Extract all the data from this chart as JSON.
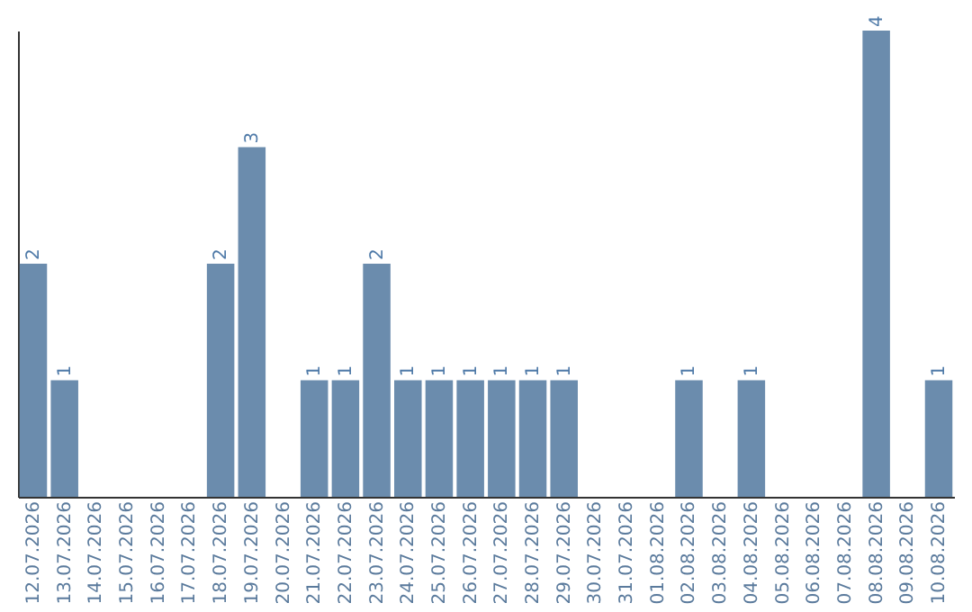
{
  "chart_data": {
    "type": "bar",
    "categories": [
      "12.07.2026",
      "13.07.2026",
      "14.07.2026",
      "15.07.2026",
      "16.07.2026",
      "17.07.2026",
      "18.07.2026",
      "19.07.2026",
      "20.07.2026",
      "21.07.2026",
      "22.07.2026",
      "23.07.2026",
      "24.07.2026",
      "25.07.2026",
      "26.07.2026",
      "27.07.2026",
      "28.07.2026",
      "29.07.2026",
      "30.07.2026",
      "31.07.2026",
      "01.08.2026",
      "02.08.2026",
      "03.08.2026",
      "04.08.2026",
      "05.08.2026",
      "06.08.2026",
      "07.08.2026",
      "08.08.2026",
      "09.08.2026",
      "10.08.2026"
    ],
    "values": [
      2,
      1,
      0,
      0,
      0,
      0,
      2,
      3,
      0,
      1,
      1,
      2,
      1,
      1,
      1,
      1,
      1,
      1,
      0,
      0,
      0,
      1,
      0,
      1,
      0,
      0,
      0,
      4,
      0,
      1
    ],
    "value_labels": [
      "2",
      "1",
      null,
      null,
      null,
      null,
      "2",
      "3",
      null,
      "1",
      "1",
      "2",
      "1",
      "1",
      "1",
      "1",
      "1",
      "1",
      null,
      null,
      null,
      "1",
      null,
      "1",
      null,
      null,
      null,
      "4",
      null,
      "1"
    ],
    "color": "#6b8cad",
    "grid": false
  }
}
